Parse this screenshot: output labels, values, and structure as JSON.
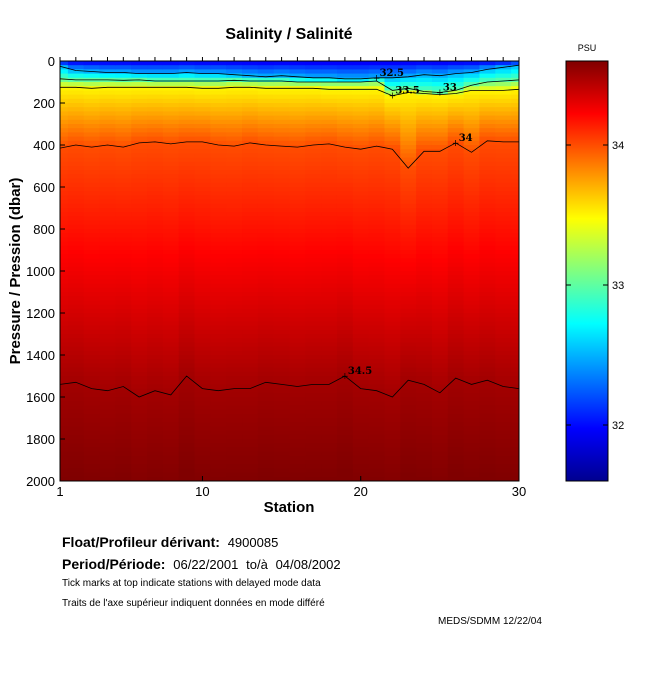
{
  "chart_data": {
    "type": "heatmap",
    "title": "Salinity / Salinité",
    "xlabel": "Station",
    "ylabel": "Pressure / Pression (dbar)",
    "xlim": [
      1,
      30
    ],
    "ylim": [
      0,
      2000
    ],
    "x_ticks": [
      "1",
      "10",
      "20",
      "30"
    ],
    "y_ticks": [
      "0",
      "200",
      "400",
      "600",
      "800",
      "1000",
      "1200",
      "1400",
      "1600",
      "1800",
      "2000"
    ],
    "colorbar": {
      "unit": "PSU",
      "range": [
        31.6,
        34.6
      ],
      "ticks": [
        "32",
        "33",
        "34"
      ]
    },
    "contours": [
      {
        "label": "32.5",
        "depth": [
          25,
          45,
          50,
          55,
          55,
          60,
          60,
          60,
          55,
          60,
          60,
          65,
          70,
          75,
          70,
          75,
          80,
          80,
          85,
          85,
          80,
          80,
          75,
          65,
          70,
          60,
          55,
          40,
          30,
          20
        ]
      },
      {
        "label": "33",
        "depth": [
          85,
          90,
          90,
          90,
          92,
          90,
          95,
          95,
          95,
          95,
          95,
          92,
          95,
          95,
          95,
          100,
          100,
          100,
          100,
          100,
          95,
          140,
          130,
          145,
          150,
          140,
          115,
          100,
          95,
          90
        ]
      },
      {
        "label": "33.5",
        "depth": [
          125,
          125,
          130,
          125,
          125,
          125,
          125,
          125,
          125,
          130,
          130,
          125,
          125,
          130,
          130,
          130,
          130,
          135,
          135,
          135,
          135,
          165,
          150,
          155,
          160,
          155,
          140,
          140,
          140,
          135
        ]
      },
      {
        "label": "34",
        "depth": [
          415,
          400,
          410,
          400,
          410,
          390,
          385,
          395,
          385,
          385,
          400,
          405,
          390,
          400,
          405,
          410,
          400,
          395,
          410,
          420,
          405,
          420,
          510,
          430,
          430,
          390,
          435,
          380,
          385,
          385
        ]
      },
      {
        "label": "34.5",
        "depth": [
          1540,
          1530,
          1560,
          1570,
          1550,
          1600,
          1570,
          1590,
          1500,
          1560,
          1570,
          1560,
          1560,
          1530,
          1540,
          1550,
          1540,
          1540,
          1500,
          1560,
          1570,
          1600,
          1520,
          1540,
          1580,
          1510,
          1540,
          1520,
          1550,
          1560
        ]
      }
    ],
    "delayed_mode_stations": [
      1,
      2,
      3,
      4,
      5,
      6,
      7,
      8,
      9,
      10,
      11,
      12,
      13,
      14,
      15,
      16,
      17,
      18,
      19,
      20,
      21,
      22,
      23,
      24,
      25,
      26,
      27,
      28,
      29,
      30
    ]
  },
  "info": {
    "float_label": "Float/Profileur dérivant:",
    "float_id": "4900085",
    "period_label": "Period/Période:",
    "period_start": "06/22/2001",
    "period_sep": "to/à",
    "period_end": "04/08/2002",
    "note_en": "Tick marks at top indicate stations with delayed mode data",
    "note_fr": "Traits de l'axe supérieur indiquent données en mode différé"
  },
  "footer": "MEDS/SDMM  12/22/04"
}
